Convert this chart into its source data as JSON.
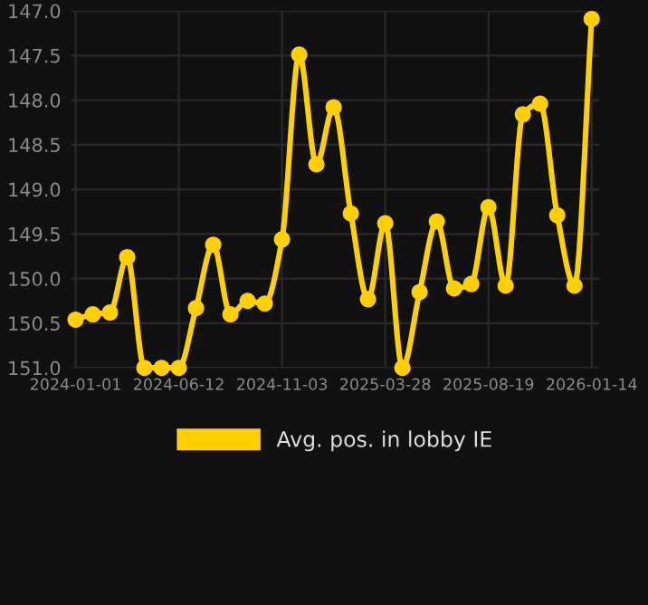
{
  "chart_data": {
    "type": "line",
    "categories": [
      "2024-01-01",
      null,
      null,
      null,
      null,
      null,
      "2024-06-12",
      null,
      null,
      null,
      null,
      null,
      "2024-11-03",
      null,
      null,
      null,
      null,
      null,
      "2025-03-28",
      null,
      null,
      null,
      null,
      null,
      "2025-08-19",
      null,
      null,
      null,
      null,
      null,
      "2026-01-14"
    ],
    "series": [
      {
        "name": "Avg. pos. in lobby IE",
        "color": "#ffd000",
        "values": [
          150.46,
          150.4,
          150.38,
          149.76,
          151.0,
          151.0,
          151.0,
          150.33,
          149.62,
          150.4,
          150.25,
          150.28,
          149.56,
          147.49,
          148.72,
          148.08,
          149.27,
          150.23,
          149.38,
          151.0,
          150.15,
          149.36,
          150.11,
          150.06,
          149.2,
          150.08,
          148.16,
          148.04,
          149.29,
          150.08,
          147.09
        ]
      }
    ],
    "ylim": [
      151.0,
      147.0
    ],
    "yticks": [
      {
        "value": 147,
        "label": "147.0"
      },
      147.5,
      {
        "value": 148,
        "label": "148.0"
      },
      148.5,
      {
        "value": 149,
        "label": "149.0"
      },
      149.5,
      {
        "value": 150,
        "label": "150.0"
      },
      150.5,
      {
        "value": 151,
        "label": "151.0"
      }
    ],
    "grid": true,
    "legend": "bottom",
    "marker": "circle",
    "line_style": "solid"
  }
}
